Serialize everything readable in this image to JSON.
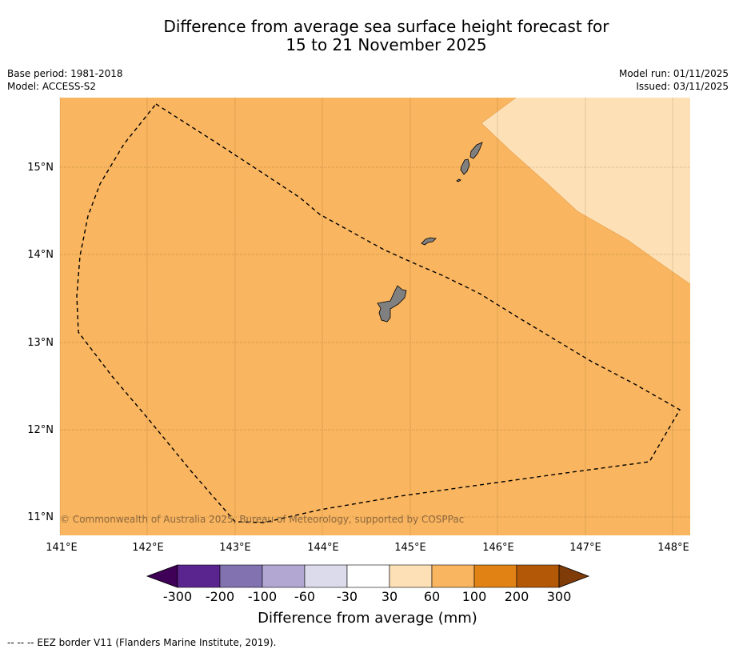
{
  "header": {
    "title_line1": "Difference from average sea surface height forecast for",
    "title_line2": "15 to 21 November 2025",
    "base_period": "Base period: 1981-2018",
    "model": "Model: ACCESS-S2",
    "model_run": "Model run: 01/11/2025",
    "issued": "Issued: 03/11/2025"
  },
  "map": {
    "lon_labels": [
      "141°E",
      "142°E",
      "143°E",
      "144°E",
      "145°E",
      "146°E",
      "147°E",
      "148°E"
    ],
    "lat_labels": [
      "15°N",
      "14°N",
      "13°N",
      "12°N",
      "11°N"
    ],
    "copyright": "© Commonwealth of Australia 2025, Bureau of Meteorology, supported by COSPPac",
    "base_color": "#f9b55f",
    "light_region_color": "#fde0b5",
    "land_color": "#808080"
  },
  "colorbar": {
    "ticks": [
      "-300",
      "-200",
      "-100",
      "-60",
      "-30",
      "30",
      "60",
      "100",
      "200",
      "300"
    ],
    "colors": [
      "#3f0057",
      "#5b2590",
      "#8272b0",
      "#b2a7d2",
      "#dbdbec",
      "#ffffff",
      "#fde0b5",
      "#f9b55f",
      "#e08214",
      "#b35807",
      "#7f3b08"
    ],
    "label": "Difference from average (mm)"
  },
  "legend": {
    "eez_note": "--  --  -- EEZ border V11 (Flanders Marine Institute, 2019)."
  }
}
